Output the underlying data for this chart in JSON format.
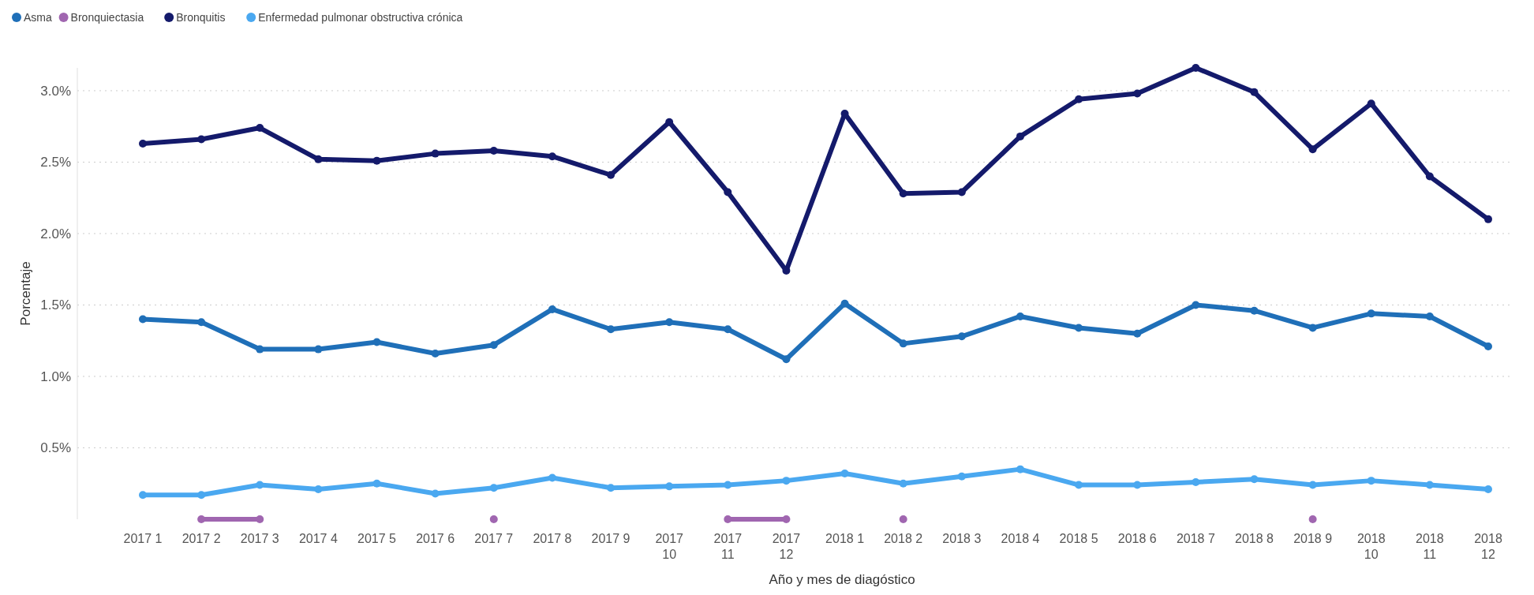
{
  "chart_data": {
    "type": "line",
    "xlabel": "Año y mes de diagóstico",
    "ylabel": "Porcentaje",
    "categories": [
      "2017 1",
      "2017 2",
      "2017 3",
      "2017 4",
      "2017 5",
      "2017 6",
      "2017 7",
      "2017 8",
      "2017 9",
      "2017 10",
      "2017 11",
      "2017 12",
      "2018 1",
      "2018 2",
      "2018 3",
      "2018 4",
      "2018 5",
      "2018 6",
      "2018 7",
      "2018 8",
      "2018 9",
      "2018 10",
      "2018 11",
      "2018 12"
    ],
    "series": [
      {
        "name": "Asma",
        "color": "#1f6fb8",
        "values": [
          1.4,
          1.38,
          1.19,
          1.19,
          1.24,
          1.16,
          1.22,
          1.47,
          1.33,
          1.38,
          1.33,
          1.12,
          1.51,
          1.23,
          1.28,
          1.42,
          1.34,
          1.3,
          1.5,
          1.46,
          1.34,
          1.44,
          1.42,
          1.21
        ]
      },
      {
        "name": "Bronquiectasia",
        "color": "#a066b0",
        "values": [
          null,
          0,
          0,
          null,
          null,
          null,
          0,
          null,
          null,
          null,
          0,
          0,
          null,
          0,
          null,
          null,
          null,
          null,
          null,
          null,
          0,
          null,
          null,
          null
        ]
      },
      {
        "name": "Bronquitis",
        "color": "#141a6b",
        "values": [
          2.63,
          2.66,
          2.74,
          2.52,
          2.51,
          2.56,
          2.58,
          2.54,
          2.41,
          2.78,
          2.29,
          1.74,
          2.84,
          2.28,
          2.29,
          2.68,
          2.94,
          2.98,
          3.16,
          2.99,
          2.59,
          2.91,
          2.4,
          2.1
        ]
      },
      {
        "name": "Enfermedad pulmonar obstructiva crónica",
        "color": "#4aa8f0",
        "values": [
          0.17,
          0.17,
          0.24,
          0.21,
          0.25,
          0.18,
          0.22,
          0.29,
          0.22,
          0.23,
          0.24,
          0.27,
          0.32,
          0.25,
          0.3,
          0.35,
          0.24,
          0.24,
          0.26,
          0.28,
          0.24,
          0.27,
          0.24,
          0.21
        ]
      }
    ],
    "ylim": [
      0,
      3.16
    ],
    "yticks": [
      {
        "value": 0.5,
        "label": "0.5%"
      },
      {
        "value": 1,
        "label": "1.0%"
      },
      {
        "value": 1.5,
        "label": "1.5%"
      },
      {
        "value": 2,
        "label": "2.0%"
      },
      {
        "value": 2.5,
        "label": "2.5%"
      },
      {
        "value": 3,
        "label": "3.0%"
      }
    ],
    "grid": "y",
    "legend": "top left",
    "marker": "circle",
    "line_style": "solid"
  }
}
